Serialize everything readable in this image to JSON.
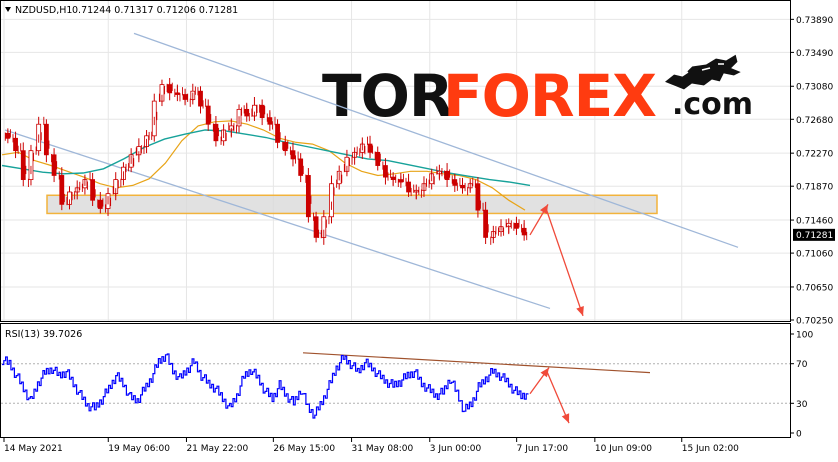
{
  "header": {
    "symbol": "NZDUSD,H1",
    "ohlc": "0.71244 0.71317 0.71206 0.71281"
  },
  "watermark": {
    "part1": "TOR",
    "part2": "FOREX",
    "part3": ".com",
    "icon": "bull-icon",
    "color_dark": "#111111",
    "color_accent": "#ff3b10"
  },
  "colors": {
    "candle": "#cc0000",
    "ma_fast": "#e8a418",
    "ma_slow": "#17a29a",
    "channel": "#9fb7d8",
    "zone_fill": "#d9d9d9",
    "zone_border": "#f2b33b",
    "arrow": "#f04a3a",
    "rsi": "#0000ff",
    "rsi_trend": "#a0522d",
    "grid": "#e6e6e6"
  },
  "chart_data": [
    {
      "type": "candlestick",
      "title": "NZDUSD,H1",
      "ylim": [
        0.7025,
        0.741
      ],
      "y_ticks": [
        "0.73890",
        "0.73490",
        "0.73080",
        "0.72680",
        "0.72270",
        "0.71870",
        "0.71460",
        "0.71060",
        "0.70650",
        "0.70250"
      ],
      "y_tick_values": [
        0.7389,
        0.7349,
        0.7308,
        0.7268,
        0.7227,
        0.7187,
        0.7146,
        0.7106,
        0.7065,
        0.7025
      ],
      "x_ticks": [
        "14 May 2021",
        "19 May 06:00",
        "21 May 22:00",
        "26 May 15:00",
        "31 May 08:00",
        "3 Jun 00:00",
        "7 Jun 17:00",
        "10 Jun 09:00",
        "15 Jun 02:00"
      ],
      "x_tick_index": [
        0,
        12,
        21,
        31,
        40,
        49,
        59,
        68,
        78
      ],
      "current_price": "0.71281",
      "current_value": 0.71281,
      "close": [
        0.7245,
        0.723,
        0.7195,
        0.723,
        0.7262,
        0.7225,
        0.72,
        0.7165,
        0.718,
        0.7185,
        0.7195,
        0.717,
        0.716,
        0.7178,
        0.7195,
        0.721,
        0.7225,
        0.7235,
        0.7248,
        0.729,
        0.731,
        0.73,
        0.7298,
        0.7292,
        0.7302,
        0.7284,
        0.7262,
        0.7242,
        0.7255,
        0.726,
        0.728,
        0.7272,
        0.7285,
        0.727,
        0.7262,
        0.724,
        0.723,
        0.722,
        0.72,
        0.715,
        0.7125,
        0.715,
        0.719,
        0.7205,
        0.7222,
        0.7228,
        0.7238,
        0.7228,
        0.7212,
        0.7198,
        0.7195,
        0.7192,
        0.718,
        0.7182,
        0.719,
        0.7202,
        0.7205,
        0.7195,
        0.7188,
        0.7185,
        0.719,
        0.7158,
        0.7125,
        0.7132,
        0.7138,
        0.7142,
        0.7136,
        0.7128
      ],
      "ma_fast": [
        0.7225,
        0.7228,
        0.7218,
        0.7212,
        0.7205,
        0.7198,
        0.719,
        0.7185,
        0.7188,
        0.7196,
        0.7215,
        0.7242,
        0.726,
        0.7265,
        0.7266,
        0.7262,
        0.7255,
        0.7245,
        0.724,
        0.7238,
        0.723,
        0.7215,
        0.7205,
        0.72,
        0.7202,
        0.7205,
        0.7205,
        0.7202,
        0.72,
        0.7195,
        0.7185,
        0.717,
        0.7158
      ],
      "ma_slow": [
        0.7212,
        0.7208,
        0.7204,
        0.7202,
        0.7203,
        0.7208,
        0.722,
        0.7234,
        0.7244,
        0.725,
        0.7255,
        0.7254,
        0.725,
        0.7246,
        0.724,
        0.7235,
        0.723,
        0.7225,
        0.722,
        0.7218,
        0.7213,
        0.7208,
        0.7203,
        0.7199,
        0.7195,
        0.7192,
        0.7188
      ],
      "support_zone": [
        0.7154,
        0.7176
      ],
      "channel_upper": [
        0.7295,
        0.7372,
        0.7113
      ],
      "channel_lower": [
        0.7178,
        0.7255,
        0.7039
      ],
      "forecast": [
        0.7128,
        0.7165,
        0.703
      ]
    },
    {
      "type": "line",
      "title": "RSI(13)",
      "label": "RSI(13) 39.7026",
      "ylim": [
        0,
        100
      ],
      "y_ticks": [
        "100",
        "70",
        "30",
        "0"
      ],
      "y_tick_values": [
        100,
        70,
        30,
        0
      ],
      "trendline": [
        81,
        61
      ],
      "forecast": [
        39.7,
        66,
        10
      ],
      "values": [
        74,
        70,
        58,
        45,
        32,
        50,
        61,
        65,
        58,
        62,
        50,
        38,
        28,
        25,
        34,
        45,
        58,
        50,
        36,
        33,
        44,
        56,
        72,
        79,
        63,
        55,
        64,
        72,
        58,
        50,
        45,
        35,
        25,
        38,
        57,
        64,
        55,
        42,
        35,
        48,
        38,
        30,
        44,
        26,
        18,
        32,
        48,
        66,
        76,
        70,
        62,
        71,
        66,
        58,
        52,
        48,
        52,
        58,
        62,
        50,
        44,
        38,
        41,
        55,
        40,
        22,
        30,
        46,
        55,
        62,
        58,
        52,
        43,
        38,
        40
      ]
    }
  ]
}
